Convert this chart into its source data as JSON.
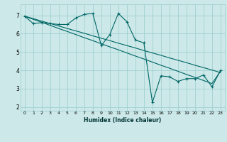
{
  "xlabel": "Humidex (Indice chaleur)",
  "background_color": "#cce8e8",
  "grid_color": "#99cccc",
  "line_color": "#006666",
  "xlim": [
    -0.5,
    23.5
  ],
  "ylim": [
    1.8,
    7.6
  ],
  "xticks": [
    0,
    1,
    2,
    3,
    4,
    5,
    6,
    7,
    8,
    9,
    10,
    11,
    12,
    13,
    14,
    15,
    16,
    17,
    18,
    19,
    20,
    21,
    22,
    23
  ],
  "yticks": [
    2,
    3,
    4,
    5,
    6,
    7
  ],
  "line1_x": [
    0,
    1,
    2,
    3,
    4,
    5,
    6,
    7,
    8,
    9,
    10,
    11,
    12,
    13,
    14,
    15,
    16,
    17,
    18,
    19,
    20,
    21,
    22,
    23
  ],
  "line1_y": [
    6.95,
    6.82,
    6.68,
    6.55,
    6.42,
    6.28,
    6.15,
    6.02,
    5.88,
    5.75,
    5.62,
    5.48,
    5.35,
    5.22,
    5.08,
    4.95,
    4.82,
    4.68,
    4.55,
    4.42,
    4.28,
    4.15,
    4.02,
    3.88
  ],
  "line2_x": [
    0,
    1,
    2,
    3,
    4,
    5,
    6,
    7,
    8,
    9,
    10,
    11,
    12,
    13,
    14,
    15,
    16,
    17,
    18,
    19,
    20,
    21,
    22,
    23
  ],
  "line2_y": [
    6.95,
    6.78,
    6.62,
    6.45,
    6.28,
    6.12,
    5.95,
    5.78,
    5.62,
    5.45,
    5.28,
    5.12,
    4.95,
    4.78,
    4.62,
    4.45,
    4.28,
    4.12,
    3.95,
    3.78,
    3.62,
    3.45,
    3.28,
    3.95
  ],
  "line3_x": [
    0,
    1,
    2,
    3,
    4,
    5,
    6,
    7,
    8,
    9,
    10,
    11,
    12,
    13,
    14,
    15,
    16,
    17,
    18,
    19,
    20,
    21,
    22,
    23
  ],
  "line3_y": [
    6.95,
    6.55,
    6.6,
    6.55,
    6.5,
    6.5,
    6.85,
    7.05,
    7.1,
    5.35,
    5.95,
    7.1,
    6.65,
    5.65,
    5.5,
    2.25,
    3.7,
    3.65,
    3.4,
    3.55,
    3.55,
    3.75,
    3.1,
    4.0
  ]
}
